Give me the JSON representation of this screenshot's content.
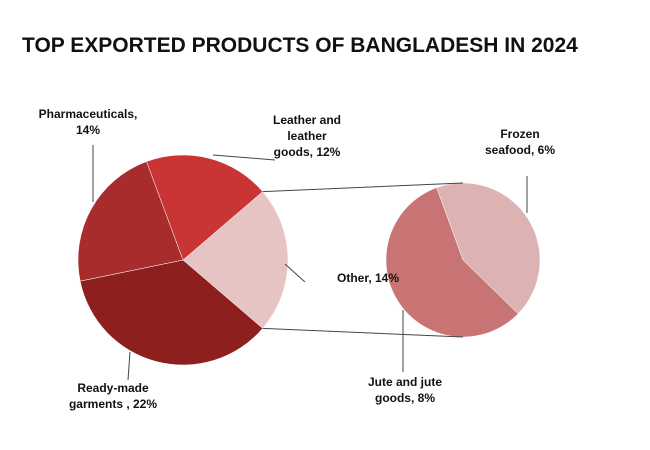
{
  "chart_data": {
    "type": "pie-of-pie",
    "title": "TOP EXPORTED PRODUCTS OF BANGLADESH IN 2024",
    "main": {
      "labels": [
        [
          "Other, 14%"
        ],
        [
          "Ready-made",
          "garments , 22%"
        ],
        [
          "Pharmaceuticals,",
          "14%"
        ],
        [
          "Leather and",
          "leather",
          "goods, 12%"
        ]
      ],
      "values": [
        14,
        22,
        14,
        12
      ],
      "colors": [
        "#e6c4c4",
        "#8e1f1f",
        "#a82c2c",
        "#c93434"
      ]
    },
    "secondary": {
      "labels": [
        [
          "Frozen",
          "seafood, 6%"
        ],
        [
          "Jute and jute",
          "goods, 8%"
        ]
      ],
      "values": [
        6,
        8
      ],
      "colors": [
        "#dcb2b2",
        "#c87474"
      ]
    }
  }
}
